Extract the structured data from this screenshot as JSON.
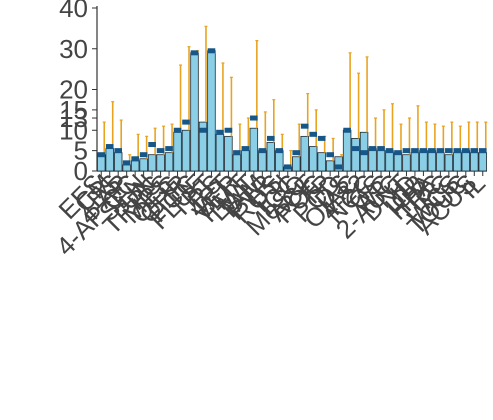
{
  "chart_data": {
    "type": "bar",
    "title": "",
    "xlabel": "",
    "ylabel": "",
    "ylim": [
      0,
      40
    ],
    "yticks": [
      0,
      5,
      10,
      13,
      15,
      20,
      30,
      40
    ],
    "grid": false,
    "categories": [
      "EFS",
      "CM",
      "ES",
      "4-AP",
      "4-AP CC",
      "SEN",
      "UN",
      "TRPG",
      "MPS",
      "OFG",
      "CHR",
      "PCC",
      "FLUF",
      "TPT",
      "RS",
      "4PT",
      "VER",
      "PMT",
      "LWT",
      "TAM",
      "PTR",
      "ROS",
      "PTI",
      "ICC",
      "MeSQ",
      "ACE",
      "POC",
      "TP",
      "PCD",
      "DS",
      "OIAC",
      "4-22",
      "NCC",
      "GS",
      "WC",
      "2-AUC",
      "DNT",
      "ID",
      "IOB",
      "HPA",
      "TRC",
      "PC",
      "WCS",
      "TOUC",
      "ACUS",
      "IL"
    ],
    "values": [
      4,
      5.5,
      4.5,
      1.5,
      2.5,
      3,
      4,
      4,
      4.5,
      9.5,
      10,
      29,
      12,
      29.5,
      9,
      8.5,
      4,
      5,
      10.5,
      5,
      7,
      5,
      1,
      3.5,
      8.5,
      6,
      4.5,
      2.5,
      3.5,
      10,
      8,
      9.5,
      5.5,
      5,
      5,
      4.5,
      4,
      4.5,
      5,
      5,
      4.5,
      4,
      4.5,
      5,
      4.5,
      4.5
    ],
    "markers": [
      4,
      6,
      5,
      2,
      3,
      4,
      6.5,
      5,
      5.5,
      10,
      12,
      29,
      10,
      29.5,
      9.5,
      10,
      4.5,
      5.5,
      13,
      5,
      8,
      5,
      1,
      4.5,
      11,
      9,
      8,
      4,
      1,
      10,
      5.5,
      4.5,
      5.5,
      5.5,
      5,
      4.5,
      5,
      5,
      5,
      5,
      5,
      5,
      5,
      5,
      5,
      5
    ],
    "error_upper": [
      12,
      17,
      12.5,
      4,
      9,
      8.5,
      10.5,
      11,
      11.5,
      26,
      30.5,
      29.5,
      35.5,
      29,
      26.5,
      23,
      11.5,
      13,
      32,
      14.5,
      17.5,
      9,
      5,
      11.5,
      19,
      15,
      8.5,
      8,
      4,
      29,
      24,
      28,
      13,
      15,
      16.5,
      11.5,
      13,
      16,
      12,
      11.5,
      11,
      12,
      11,
      12,
      12,
      12
    ],
    "colors": {
      "bar": "#8acfe6",
      "bar_edge": "#1f2a33",
      "marker": "#175788",
      "error": "#e8a321",
      "axis": "#333333",
      "label": "#444444"
    }
  }
}
